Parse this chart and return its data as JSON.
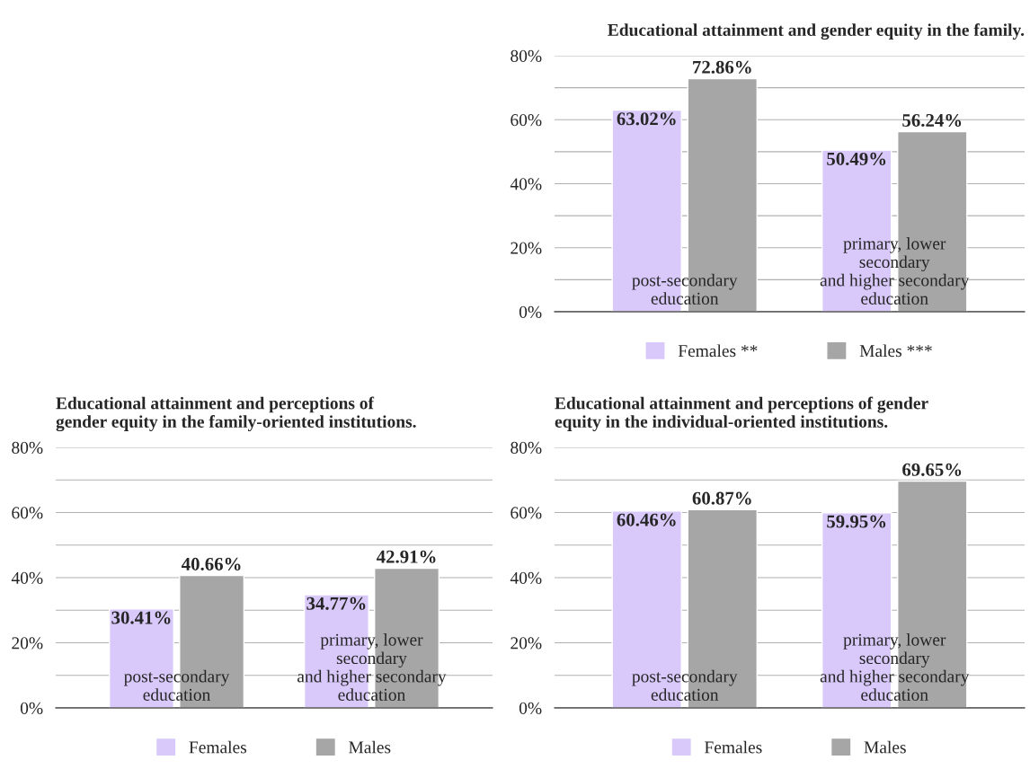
{
  "chart_data": [
    {
      "type": "bar",
      "title": "Educational attainment and gender equity in the family.",
      "categories": [
        "post-secondary\neducation",
        "primary, lower\nsecondary\nand higher secondary\neducation"
      ],
      "series": [
        {
          "name": "Females **",
          "color": "#d9c9fb",
          "values": [
            63.02,
            50.49
          ],
          "value_labels": [
            "63.02%",
            "50.49%"
          ]
        },
        {
          "name": "Males ***",
          "color": "#a6a6a6",
          "values": [
            72.86,
            56.24
          ],
          "value_labels": [
            "72.86%",
            "56.24%"
          ]
        }
      ],
      "ylim": [
        0,
        80
      ],
      "yticks": [
        {
          "value": 0,
          "label": "0%"
        },
        {
          "value": 10,
          "label": null
        },
        {
          "value": 20,
          "label": "20%"
        },
        {
          "value": 30,
          "label": null
        },
        {
          "value": 40,
          "label": "40%"
        },
        {
          "value": 50,
          "label": null
        },
        {
          "value": 60,
          "label": "60%"
        },
        {
          "value": 70,
          "label": null
        },
        {
          "value": 80,
          "label": "80%"
        }
      ],
      "grid": "y",
      "legend": "bottom"
    },
    {
      "type": "bar",
      "title": "Educational attainment and perceptions of\ngender equity in the family-oriented institutions.",
      "categories": [
        "post-secondary\neducation",
        "primary, lower\nsecondary\nand higher secondary\neducation"
      ],
      "series": [
        {
          "name": "Females",
          "color": "#d9c9fb",
          "values": [
            30.41,
            34.77
          ],
          "value_labels": [
            "30.41%",
            "34.77%"
          ]
        },
        {
          "name": "Males",
          "color": "#a6a6a6",
          "values": [
            40.66,
            42.91
          ],
          "value_labels": [
            "40.66%",
            "42.91%"
          ]
        }
      ],
      "ylim": [
        0,
        80
      ],
      "yticks": [
        {
          "value": 0,
          "label": "0%"
        },
        {
          "value": 10,
          "label": null
        },
        {
          "value": 20,
          "label": "20%"
        },
        {
          "value": 30,
          "label": null
        },
        {
          "value": 40,
          "label": "40%"
        },
        {
          "value": 50,
          "label": null
        },
        {
          "value": 60,
          "label": "60%"
        },
        {
          "value": 70,
          "label": null
        },
        {
          "value": 80,
          "label": "80%"
        }
      ],
      "grid": "y",
      "legend": "bottom"
    },
    {
      "type": "bar",
      "title": "Educational attainment and perceptions of gender\nequity in the individual-oriented institutions.",
      "categories": [
        "post-secondary\neducation",
        "primary, lower\nsecondary\nand higher secondary\neducation"
      ],
      "series": [
        {
          "name": "Females",
          "color": "#d9c9fb",
          "values": [
            60.46,
            59.95
          ],
          "value_labels": [
            "60.46%",
            "59.95%"
          ]
        },
        {
          "name": "Males",
          "color": "#a6a6a6",
          "values": [
            60.87,
            69.65
          ],
          "value_labels": [
            "60.87%",
            "69.65%"
          ]
        }
      ],
      "ylim": [
        0,
        80
      ],
      "yticks": [
        {
          "value": 0,
          "label": "0%"
        },
        {
          "value": 10,
          "label": null
        },
        {
          "value": 20,
          "label": "20%"
        },
        {
          "value": 30,
          "label": null
        },
        {
          "value": 40,
          "label": "40%"
        },
        {
          "value": 50,
          "label": null
        },
        {
          "value": 60,
          "label": "60%"
        },
        {
          "value": 70,
          "label": null
        },
        {
          "value": 80,
          "label": "80%"
        }
      ],
      "grid": "y",
      "legend": "bottom"
    }
  ]
}
